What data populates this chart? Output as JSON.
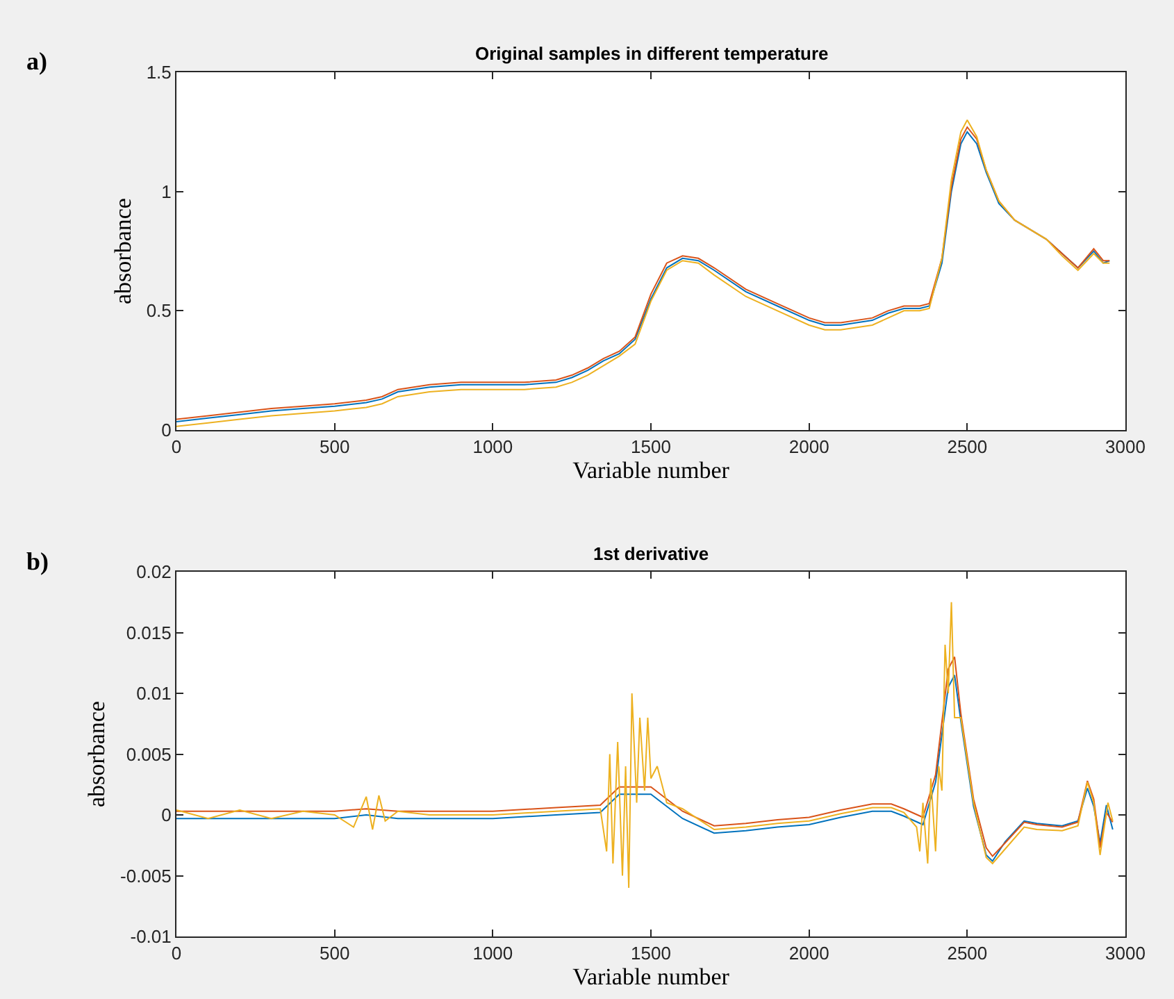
{
  "chart_data": [
    {
      "type": "line",
      "title": "Original samples in different temperature",
      "xlabel": "Variable number",
      "ylabel": "absorbance",
      "annotations": [
        "a)"
      ],
      "x": [
        0,
        100,
        200,
        300,
        400,
        500,
        600,
        650,
        700,
        800,
        900,
        1000,
        1100,
        1200,
        1250,
        1300,
        1350,
        1400,
        1450,
        1500,
        1550,
        1600,
        1650,
        1700,
        1800,
        1900,
        2000,
        2050,
        2100,
        2200,
        2250,
        2300,
        2350,
        2380,
        2420,
        2450,
        2480,
        2500,
        2530,
        2560,
        2600,
        2650,
        2700,
        2750,
        2800,
        2850,
        2900,
        2930,
        2950
      ],
      "series": [
        {
          "color": "#0072bd",
          "values": [
            0.035,
            0.05,
            0.065,
            0.08,
            0.09,
            0.1,
            0.115,
            0.13,
            0.16,
            0.18,
            0.19,
            0.19,
            0.19,
            0.2,
            0.22,
            0.25,
            0.29,
            0.32,
            0.38,
            0.55,
            0.68,
            0.72,
            0.71,
            0.67,
            0.58,
            0.52,
            0.46,
            0.44,
            0.44,
            0.46,
            0.49,
            0.51,
            0.51,
            0.52,
            0.7,
            1.0,
            1.2,
            1.25,
            1.2,
            1.08,
            0.95,
            0.88,
            0.84,
            0.8,
            0.74,
            0.68,
            0.75,
            0.7,
            0.71
          ]
        },
        {
          "color": "#d95319",
          "values": [
            0.045,
            0.06,
            0.075,
            0.09,
            0.1,
            0.11,
            0.125,
            0.14,
            0.17,
            0.19,
            0.2,
            0.2,
            0.2,
            0.21,
            0.23,
            0.26,
            0.3,
            0.33,
            0.39,
            0.57,
            0.7,
            0.73,
            0.72,
            0.68,
            0.59,
            0.53,
            0.47,
            0.45,
            0.45,
            0.47,
            0.5,
            0.52,
            0.52,
            0.53,
            0.72,
            1.02,
            1.22,
            1.27,
            1.22,
            1.09,
            0.96,
            0.88,
            0.84,
            0.8,
            0.74,
            0.68,
            0.76,
            0.71,
            0.71
          ]
        },
        {
          "color": "#edb120",
          "values": [
            0.015,
            0.03,
            0.045,
            0.06,
            0.07,
            0.08,
            0.095,
            0.11,
            0.14,
            0.16,
            0.17,
            0.17,
            0.17,
            0.18,
            0.2,
            0.23,
            0.27,
            0.31,
            0.36,
            0.54,
            0.67,
            0.71,
            0.7,
            0.65,
            0.56,
            0.5,
            0.44,
            0.42,
            0.42,
            0.44,
            0.47,
            0.5,
            0.5,
            0.51,
            0.72,
            1.05,
            1.25,
            1.3,
            1.23,
            1.09,
            0.96,
            0.88,
            0.84,
            0.8,
            0.73,
            0.67,
            0.74,
            0.7,
            0.7
          ]
        }
      ],
      "xlim": [
        0,
        3000
      ],
      "xticks": [
        0,
        500,
        1000,
        1500,
        2000,
        2500,
        3000
      ],
      "ylim": [
        0,
        1.5
      ],
      "yticks": [
        0,
        0.5,
        1,
        1.5
      ],
      "marker": "none",
      "line_style": "solid"
    },
    {
      "type": "line",
      "title": "1st derivative",
      "xlabel": "Variable number",
      "ylabel": "absorbance",
      "annotations": [
        "b)"
      ],
      "series": [
        {
          "color": "#0072bd",
          "x": [
            0,
            500,
            600,
            700,
            1000,
            1200,
            1340,
            1400,
            1500,
            1600,
            1700,
            1800,
            1900,
            2000,
            2100,
            2200,
            2260,
            2300,
            2360,
            2400,
            2440,
            2460,
            2480,
            2520,
            2560,
            2580,
            2620,
            2680,
            2720,
            2800,
            2850,
            2880,
            2900,
            2920,
            2940,
            2960
          ],
          "values": [
            -0.0003,
            -0.0003,
            0,
            -0.0003,
            -0.0003,
            0,
            0.0002,
            0.0017,
            0.0017,
            -0.0003,
            -0.0015,
            -0.0013,
            -0.001,
            -0.0008,
            -0.0002,
            0.0003,
            0.0003,
            -0.0001,
            -0.0008,
            0.0027,
            0.0105,
            0.0115,
            0.0077,
            0.0007,
            -0.0033,
            -0.0038,
            -0.0022,
            -0.0005,
            -0.0007,
            -0.0009,
            -0.0005,
            0.0022,
            0.0007,
            -0.0023,
            0.0008,
            -0.0012
          ]
        },
        {
          "color": "#d95319",
          "x": [
            0,
            500,
            600,
            700,
            1000,
            1200,
            1340,
            1400,
            1500,
            1600,
            1700,
            1800,
            1900,
            2000,
            2100,
            2200,
            2260,
            2300,
            2360,
            2400,
            2440,
            2460,
            2480,
            2520,
            2560,
            2580,
            2620,
            2680,
            2720,
            2800,
            2850,
            2880,
            2900,
            2920,
            2940,
            2960
          ],
          "values": [
            0.0003,
            0.0003,
            0.0005,
            0.0003,
            0.0003,
            0.0006,
            0.0008,
            0.0023,
            0.0023,
            0.0003,
            -0.0009,
            -0.0007,
            -0.0004,
            -0.0002,
            0.0004,
            0.0009,
            0.0009,
            0.0005,
            -0.0002,
            0.0033,
            0.012,
            0.013,
            0.0083,
            0.0013,
            -0.0027,
            -0.0034,
            -0.0023,
            -0.0006,
            -0.0008,
            -0.001,
            -0.0006,
            0.0028,
            0.0013,
            -0.0027,
            0.0002,
            -0.0006
          ]
        },
        {
          "color": "#edb120",
          "x": [
            0,
            100,
            200,
            300,
            400,
            500,
            560,
            600,
            620,
            640,
            660,
            700,
            800,
            1000,
            1200,
            1340,
            1360,
            1370,
            1380,
            1395,
            1410,
            1420,
            1430,
            1440,
            1455,
            1465,
            1480,
            1490,
            1500,
            1520,
            1550,
            1600,
            1700,
            1800,
            1900,
            2000,
            2100,
            2200,
            2260,
            2300,
            2340,
            2350,
            2360,
            2375,
            2385,
            2400,
            2410,
            2420,
            2430,
            2440,
            2450,
            2460,
            2480,
            2520,
            2560,
            2580,
            2620,
            2680,
            2720,
            2800,
            2850,
            2880,
            2900,
            2920,
            2945,
            2960
          ],
          "values": [
            0.0004,
            -0.0003,
            0.0004,
            -0.0003,
            0.0003,
            0,
            -0.001,
            0.0015,
            -0.0012,
            0.0016,
            -0.0005,
            0.0003,
            0,
            0,
            0.0003,
            0.0005,
            -0.003,
            0.005,
            -0.004,
            0.006,
            -0.005,
            0.004,
            -0.006,
            0.01,
            0.001,
            0.008,
            0.002,
            0.008,
            0.003,
            0.004,
            0.001,
            0.0005,
            -0.0012,
            -0.001,
            -0.0007,
            -0.0005,
            0.0001,
            0.0006,
            0.0006,
            0.0002,
            -0.001,
            -0.003,
            0.001,
            -0.004,
            0.003,
            -0.003,
            0.004,
            0.002,
            0.014,
            0.01,
            0.0175,
            0.008,
            0.008,
            0.001,
            -0.0035,
            -0.004,
            -0.0028,
            -0.001,
            -0.0012,
            -0.0013,
            -0.0009,
            0.0027,
            0.001,
            -0.0033,
            0.001,
            -0.0005
          ]
        }
      ],
      "xlim": [
        0,
        3000
      ],
      "xticks": [
        0,
        500,
        1000,
        1500,
        2000,
        2500,
        3000
      ],
      "ylim": [
        -0.01,
        0.02
      ],
      "yticks": [
        -0.01,
        -0.005,
        0,
        0.005,
        0.01,
        0.015,
        0.02
      ],
      "marker": "none",
      "line_style": "solid"
    }
  ]
}
